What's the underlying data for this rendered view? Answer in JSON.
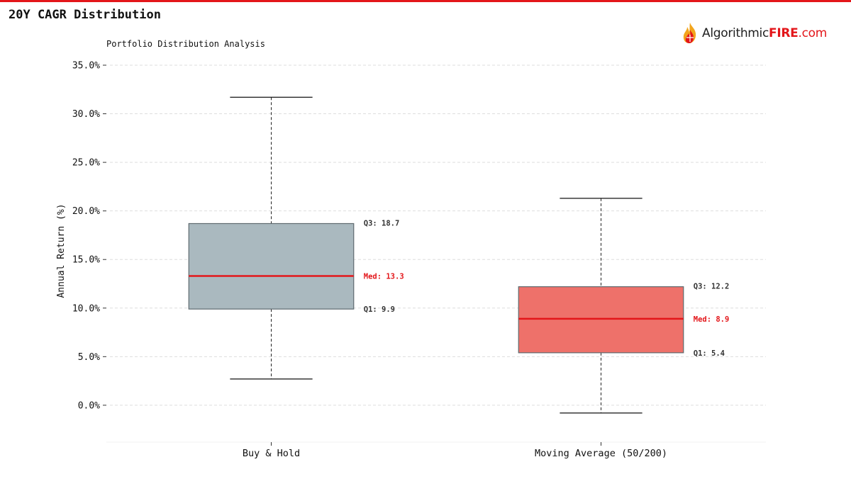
{
  "page": {
    "title": "20Y CAGR Distribution",
    "subtitle": "Portfolio Distribution Analysis",
    "logo": {
      "prefix": "Algorithmic",
      "brand": "FIRE",
      "suffix": ".com",
      "icon": "flame-logo-icon"
    }
  },
  "colors": {
    "accent": "#e3161a",
    "box_buy_hold": "#aab9bf",
    "box_moving_avg": "#ee716a",
    "median_line": "#e3161a",
    "grid": "#dddddd"
  },
  "chart_data": {
    "type": "box",
    "title": "",
    "xlabel": "",
    "ylabel": "Annual Return (%)",
    "ylim": [
      -3.8,
      35
    ],
    "yticks": [
      0,
      5,
      10,
      15,
      20,
      25,
      30,
      35
    ],
    "ytick_labels": [
      "0.0%",
      "5.0%",
      "10.0%",
      "15.0%",
      "20.0%",
      "25.0%",
      "30.0%",
      "35.0%"
    ],
    "grid": true,
    "categories": [
      "Buy & Hold",
      "Moving Average (50/200)"
    ],
    "boxes": [
      {
        "category": "Buy & Hold",
        "whisker_low": 2.7,
        "q1": 9.9,
        "median": 13.3,
        "q3": 18.7,
        "whisker_high": 31.7,
        "labels": {
          "q3": "Q3: 18.7",
          "median": "Med: 13.3",
          "q1": "Q1: 9.9"
        }
      },
      {
        "category": "Moving Average (50/200)",
        "whisker_low": -0.8,
        "q1": 5.4,
        "median": 8.9,
        "q3": 12.2,
        "whisker_high": 21.3,
        "labels": {
          "q3": "Q3: 12.2",
          "median": "Med: 8.9",
          "q1": "Q1: 5.4"
        }
      }
    ]
  }
}
